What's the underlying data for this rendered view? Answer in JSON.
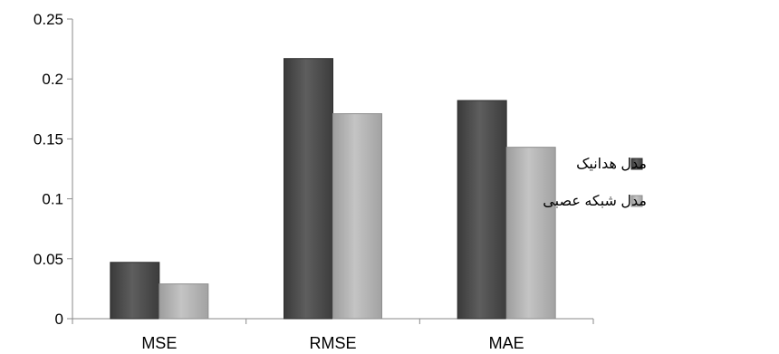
{
  "chart_data": {
    "type": "bar",
    "categories": [
      "MSE",
      "RMSE",
      "MAE"
    ],
    "series": [
      {
        "name": "مدل هدانیک",
        "values": [
          0.047,
          0.217,
          0.182
        ],
        "color": "#585858"
      },
      {
        "name": "مدل شبکه عصبی",
        "values": [
          0.029,
          0.171,
          0.143
        ],
        "color": "#b5b5b5"
      }
    ],
    "ylim": [
      0,
      0.25
    ],
    "yticks": [
      "0",
      "0.05",
      "0.1",
      "0.15",
      "0.2",
      "0.25"
    ],
    "yticks_values": [
      0,
      0.05,
      0.1,
      0.15,
      0.2,
      0.25
    ],
    "grid": false,
    "legend": "right",
    "title": "",
    "xlabel": "",
    "ylabel": ""
  }
}
